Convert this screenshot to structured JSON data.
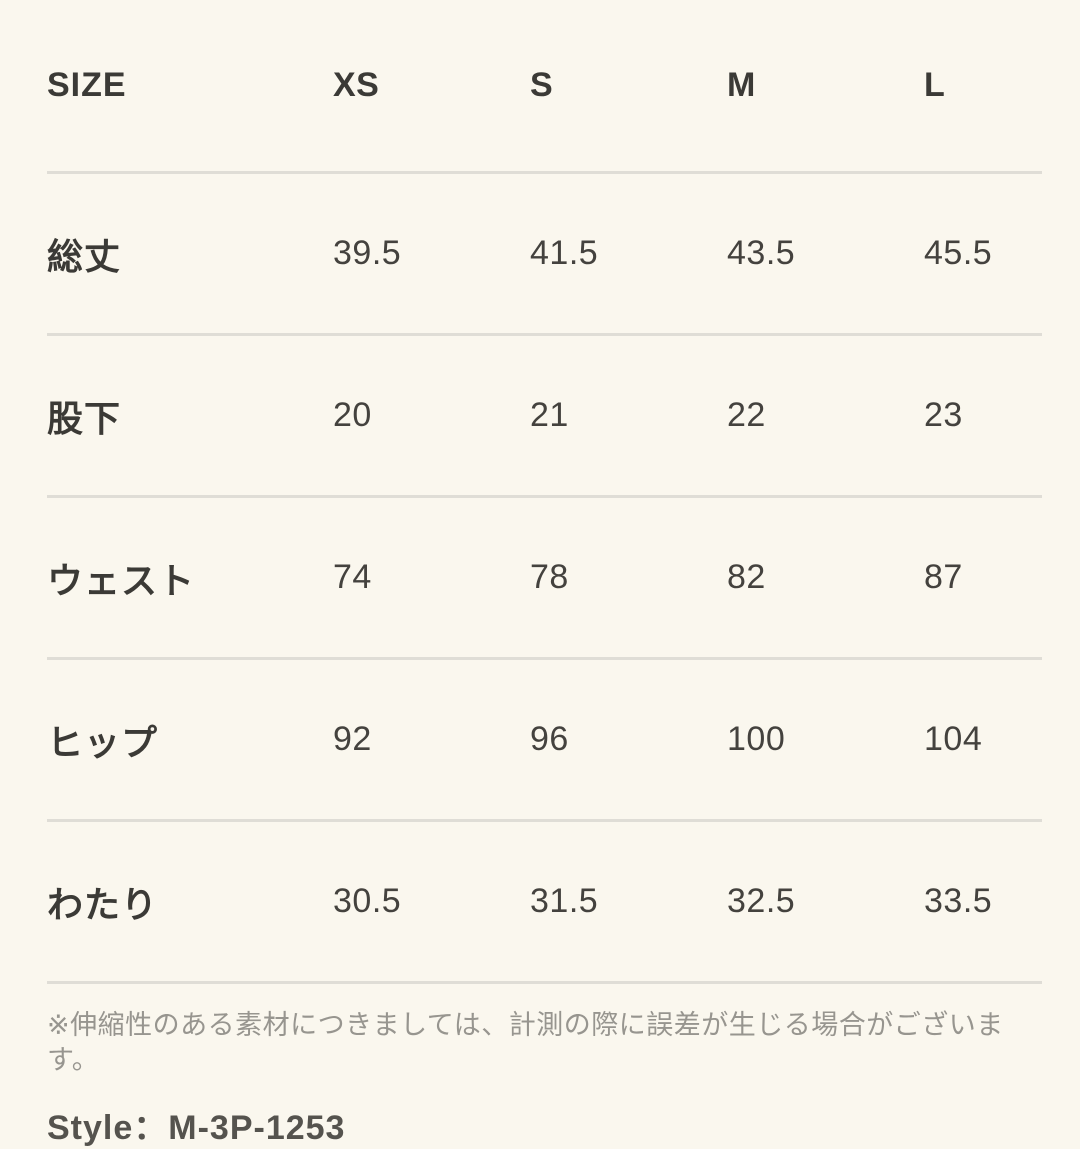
{
  "chart_data": {
    "type": "table",
    "title": "size-chart",
    "columns": [
      "SIZE",
      "XS",
      "S",
      "M",
      "L"
    ],
    "rows": [
      {
        "label": "総丈",
        "values": [
          "39.5",
          "41.5",
          "43.5",
          "45.5"
        ]
      },
      {
        "label": "股下",
        "values": [
          "20",
          "21",
          "22",
          "23"
        ]
      },
      {
        "label": "ウェスト",
        "values": [
          "74",
          "78",
          "82",
          "87"
        ]
      },
      {
        "label": "ヒップ",
        "values": [
          "92",
          "96",
          "100",
          "104"
        ]
      },
      {
        "label": "わたり",
        "values": [
          "30.5",
          "31.5",
          "32.5",
          "33.5"
        ]
      }
    ]
  },
  "note": "※伸縮性のある素材につきましては、計測の際に誤差が生じる場合がございます。",
  "footer_partial": "Style：M-3P-1253",
  "colors": {
    "background": "#faf7ee",
    "heading_text": "#3b3a36",
    "value_text": "#44423e",
    "divider": "#dfddd6",
    "note_text": "#97958f"
  }
}
